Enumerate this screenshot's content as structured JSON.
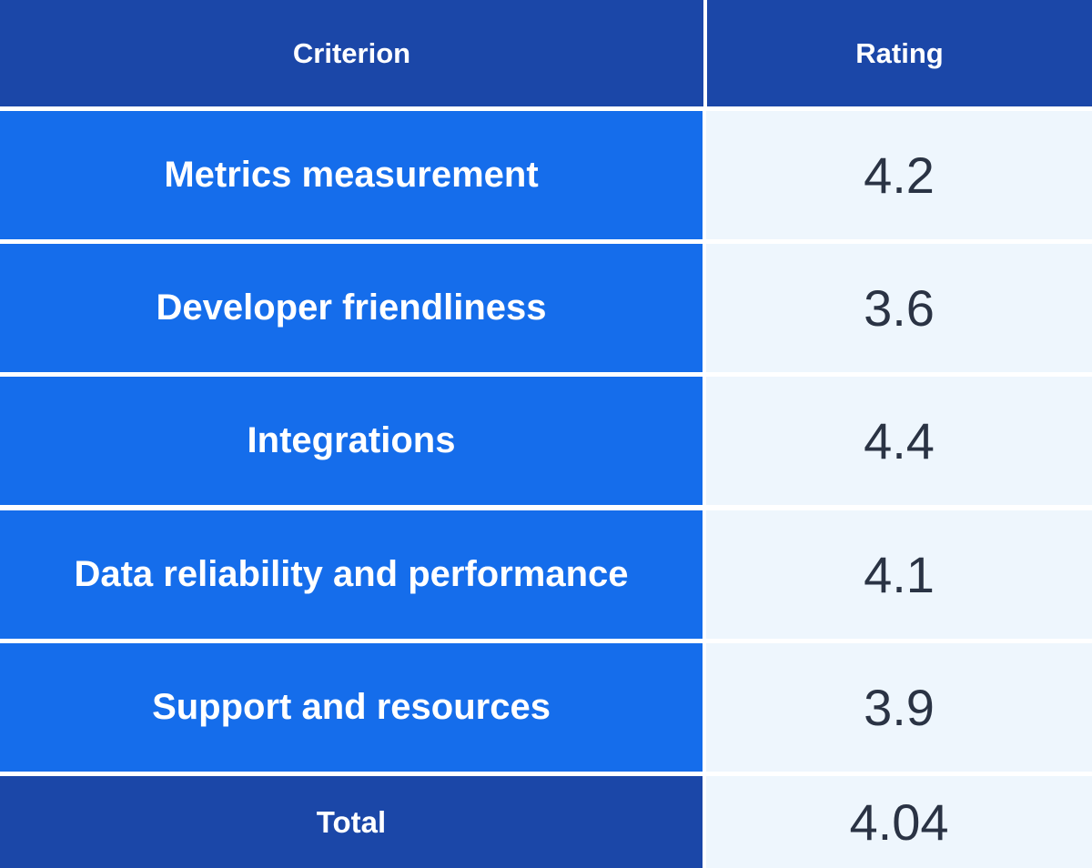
{
  "header": {
    "criterion": "Criterion",
    "rating": "Rating"
  },
  "rows": [
    {
      "criterion": "Metrics measurement",
      "rating": "4.2"
    },
    {
      "criterion": "Developer friendliness",
      "rating": "3.6"
    },
    {
      "criterion": "Integrations",
      "rating": "4.4"
    },
    {
      "criterion": "Data reliability and performance",
      "rating": "4.1"
    },
    {
      "criterion": "Support and resources",
      "rating": "3.9"
    }
  ],
  "total": {
    "label": "Total",
    "rating": "4.04"
  },
  "colors": {
    "header_bg": "#1b47a8",
    "criterion_bg": "#156deb",
    "rating_bg": "#eef6fd",
    "rating_text": "#2a3344"
  }
}
